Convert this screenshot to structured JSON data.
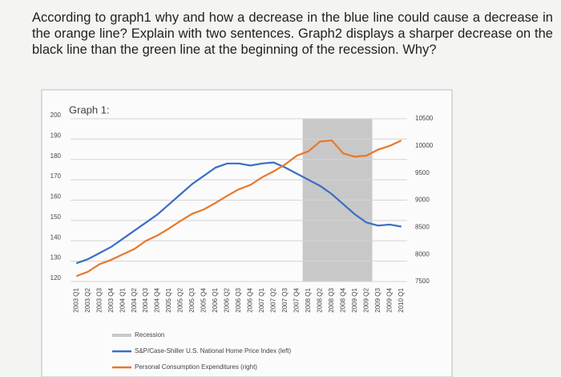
{
  "question": "According to graph1 why and how a decrease in the blue line could cause a decrease in the orange line? Explain with two sentences. Graph2 displays a sharper decrease on the black line than the green line at the beginning of the recession. Why?",
  "chart_data": {
    "type": "line",
    "title": "Graph 1:",
    "categories": [
      "2003 Q1",
      "2003 Q2",
      "2003 Q3",
      "2003 Q4",
      "2004 Q1",
      "2004 Q2",
      "2004 Q3",
      "2004 Q4",
      "2005 Q1",
      "2005 Q2",
      "2005 Q3",
      "2005 Q4",
      "2006 Q1",
      "2006 Q2",
      "2006 Q3",
      "2006 Q4",
      "2007 Q1",
      "2007 Q2",
      "2007 Q3",
      "2007 Q4",
      "2008 Q1",
      "2008 Q2",
      "2008 Q3",
      "2008 Q4",
      "2009 Q1",
      "2009 Q2",
      "2009 Q3",
      "2009 Q4",
      "2010 Q1"
    ],
    "recession": {
      "name": "Recession",
      "color": "#c8c8c8",
      "start": "2008 Q1",
      "end": "2009 Q2"
    },
    "series": [
      {
        "name": "S&P/Case-Shiller U.S. National Home Price Index (left)",
        "color": "#3a6fc4",
        "axis": "y",
        "values": [
          129,
          131,
          134,
          137,
          141,
          145,
          149,
          153,
          158,
          163,
          168,
          172,
          176,
          178,
          178,
          177,
          178,
          178.5,
          176,
          173,
          170,
          167,
          163,
          158,
          153,
          149,
          147.5,
          148,
          147
        ]
      },
      {
        "name": "Personal Consumption Expenditures (right)",
        "color": "#e8782a",
        "axis": "y2",
        "values": [
          7600,
          7680,
          7820,
          7900,
          8000,
          8100,
          8250,
          8350,
          8480,
          8620,
          8750,
          8830,
          8950,
          9080,
          9200,
          9280,
          9420,
          9530,
          9660,
          9820,
          9900,
          10080,
          10100,
          9860,
          9800,
          9820,
          9930,
          10000,
          10100
        ]
      }
    ],
    "ylim": [
      120,
      200
    ],
    "yticks": [
      120,
      130,
      140,
      150,
      160,
      170,
      180,
      190,
      200
    ],
    "y2lim": [
      7500,
      10500
    ],
    "y2ticks": [
      7500,
      8000,
      8500,
      9000,
      9500,
      10000,
      10500
    ],
    "grid": true
  }
}
